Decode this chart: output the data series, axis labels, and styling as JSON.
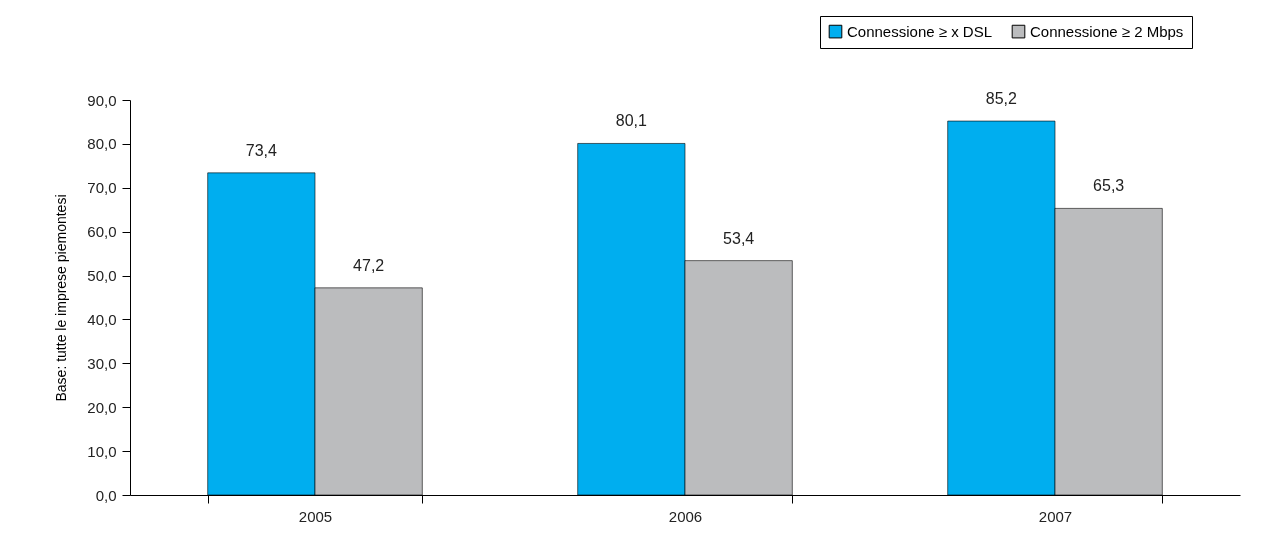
{
  "chart_data": {
    "type": "bar",
    "ylabel": "Base: tutte le imprese piemontesi",
    "categories": [
      "2005",
      "2006",
      "2007"
    ],
    "series": [
      {
        "name": "Connessione ≥ x DSL",
        "color": "#00aeef",
        "values": [
          73.4,
          80.1,
          85.2
        ],
        "value_labels": [
          "73,4",
          "80,1",
          "85,2"
        ]
      },
      {
        "name": "Connessione ≥ 2 Mbps",
        "color": "#bbbcbe",
        "values": [
          47.2,
          53.4,
          65.3
        ],
        "value_labels": [
          "47,2",
          "53,4",
          "65,3"
        ]
      }
    ],
    "ylim": [
      0,
      90
    ],
    "yticks": [
      {
        "value": 0,
        "label": "0,0"
      },
      {
        "value": 10,
        "label": "10,0"
      },
      {
        "value": 20,
        "label": "20,0"
      },
      {
        "value": 30,
        "label": "30,0"
      },
      {
        "value": 40,
        "label": "40,0"
      },
      {
        "value": 50,
        "label": "50,0"
      },
      {
        "value": 60,
        "label": "60,0"
      },
      {
        "value": 70,
        "label": "70,0"
      },
      {
        "value": 80,
        "label": "80,0"
      },
      {
        "value": 90,
        "label": "90,0"
      }
    ],
    "grid": false,
    "legend": "top right"
  }
}
